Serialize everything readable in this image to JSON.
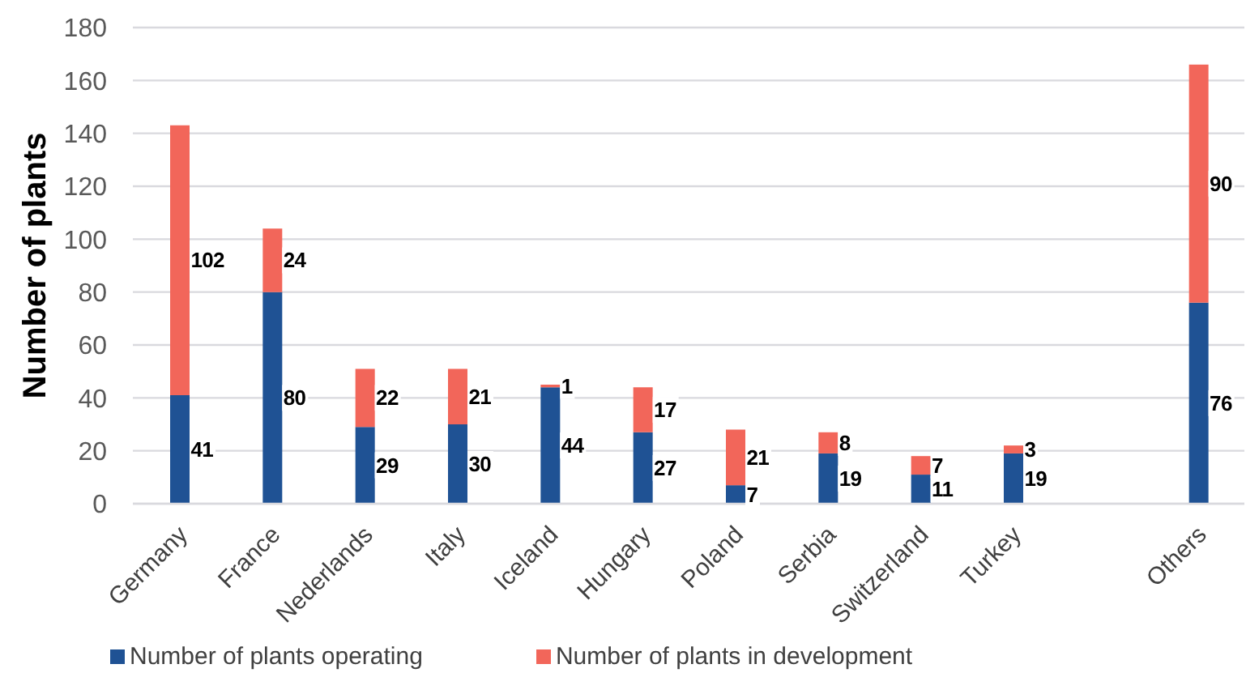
{
  "chart_data": {
    "type": "bar",
    "stacked": true,
    "ylabel": "Number of plants",
    "categories": [
      "Germany",
      "France",
      "Nederlands",
      "Italy",
      "Iceland",
      "Hungary",
      "Poland",
      "Serbia",
      "Switzerland",
      "Turkey",
      null,
      "Others"
    ],
    "series": [
      {
        "name": "Number of plants operating",
        "color": "#1f5294",
        "values": [
          41,
          80,
          29,
          30,
          44,
          27,
          7,
          19,
          11,
          19,
          null,
          76
        ]
      },
      {
        "name": "Number of plants in development",
        "color": "#f2665a",
        "values": [
          102,
          24,
          22,
          21,
          1,
          17,
          21,
          8,
          7,
          3,
          null,
          90
        ]
      }
    ],
    "ylim": [
      0,
      180
    ],
    "yticks": [
      0,
      20,
      40,
      60,
      80,
      100,
      120,
      140,
      160,
      180
    ],
    "grid": "y",
    "legend": "bottom",
    "data_labels": true
  }
}
